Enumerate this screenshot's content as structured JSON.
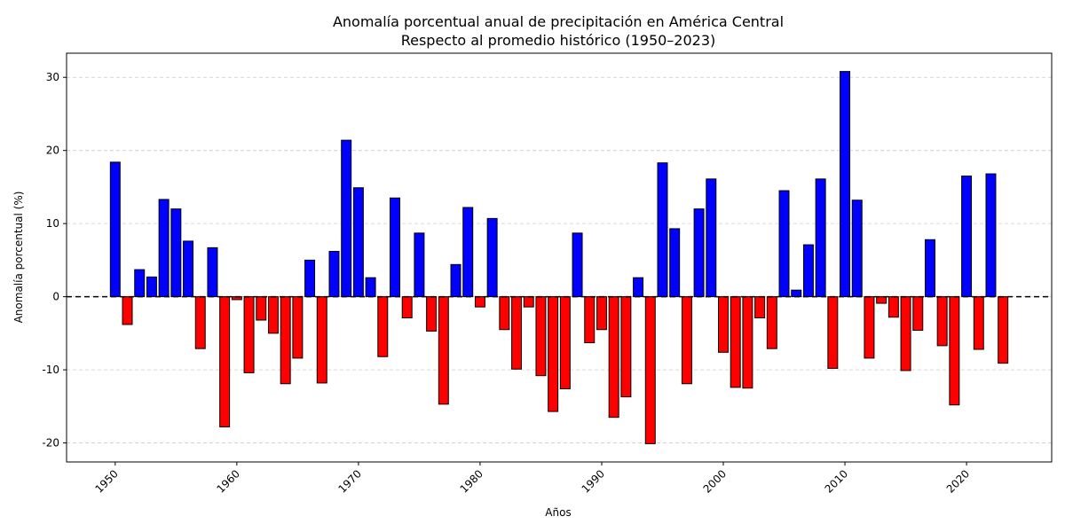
{
  "chart_data": {
    "type": "bar",
    "title": "Anomalía porcentual anual de precipitación en América Central",
    "subtitle": "Respecto al promedio histórico (1950–2023)",
    "xlabel": "Años",
    "ylabel": "Anomalía porcentual (%)",
    "xlim": [
      1946,
      2027
    ],
    "ylim": [
      -22.6,
      33.3
    ],
    "xticks": [
      1950,
      1960,
      1970,
      1980,
      1990,
      2000,
      2010,
      2020
    ],
    "yticks": [
      -20,
      -10,
      0,
      10,
      20,
      30
    ],
    "grid": "y-dashed",
    "reference_line": 0,
    "colors": {
      "positive": "#0000ff",
      "negative": "#ff0000",
      "edge": "#000000",
      "grid": "#cccccc"
    },
    "x": [
      1950,
      1951,
      1952,
      1953,
      1954,
      1955,
      1956,
      1957,
      1958,
      1959,
      1960,
      1961,
      1962,
      1963,
      1964,
      1965,
      1966,
      1967,
      1968,
      1969,
      1970,
      1971,
      1972,
      1973,
      1974,
      1975,
      1976,
      1977,
      1978,
      1979,
      1980,
      1981,
      1982,
      1983,
      1984,
      1985,
      1986,
      1987,
      1988,
      1989,
      1990,
      1991,
      1992,
      1993,
      1994,
      1995,
      1996,
      1997,
      1998,
      1999,
      2000,
      2001,
      2002,
      2003,
      2004,
      2005,
      2006,
      2007,
      2008,
      2009,
      2010,
      2011,
      2012,
      2013,
      2014,
      2015,
      2016,
      2017,
      2018,
      2019,
      2020,
      2021,
      2022,
      2023
    ],
    "values": [
      18.4,
      -3.8,
      3.7,
      2.7,
      13.3,
      12.0,
      7.6,
      -7.1,
      6.7,
      -17.8,
      -0.4,
      -10.4,
      -3.2,
      -5.0,
      -11.9,
      -8.4,
      5.0,
      -11.8,
      6.2,
      21.4,
      14.9,
      2.6,
      -8.2,
      13.5,
      -2.9,
      8.7,
      -4.7,
      -14.7,
      4.4,
      12.2,
      -1.4,
      10.7,
      -4.5,
      -9.9,
      -1.4,
      -10.8,
      -15.7,
      -12.6,
      8.7,
      -6.3,
      -4.5,
      -16.5,
      -13.7,
      2.6,
      -20.1,
      18.3,
      9.3,
      -11.9,
      12.0,
      16.1,
      -7.6,
      -12.4,
      -12.5,
      -2.9,
      -7.1,
      14.5,
      0.9,
      7.1,
      16.1,
      -9.8,
      30.8,
      13.2,
      -8.4,
      -0.9,
      -2.8,
      -10.1,
      -4.6,
      7.8,
      -6.7,
      -14.8,
      16.5,
      -7.2,
      16.8,
      -9.1
    ]
  }
}
